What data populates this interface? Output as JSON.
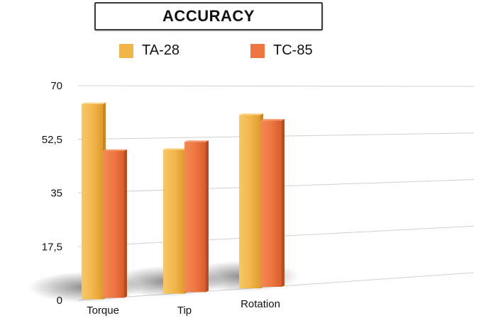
{
  "chart_data": {
    "type": "bar",
    "title": "ACCURACY",
    "categories": [
      "Torque",
      "Tip",
      "Rotation"
    ],
    "series": [
      {
        "name": "TA-28",
        "values": [
          64,
          48.5,
          60
        ]
      },
      {
        "name": "TC-85",
        "values": [
          48.5,
          51,
          58
        ]
      }
    ],
    "ylim": [
      0,
      70
    ],
    "yticks": [
      "0",
      "17,5",
      "35",
      "52,5",
      "70"
    ],
    "grid": true,
    "legend": "top",
    "colors": {
      "TA-28": "#F2B54A",
      "TC-85": "#EE7440"
    }
  }
}
